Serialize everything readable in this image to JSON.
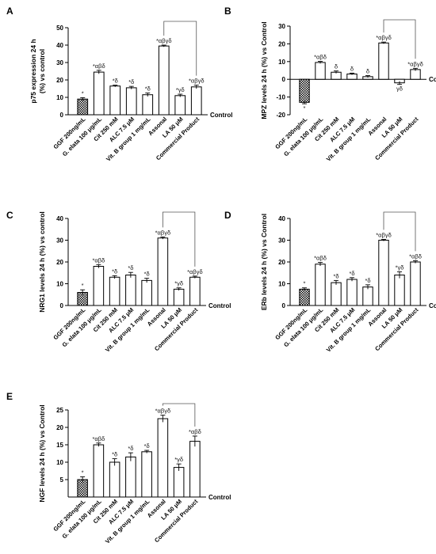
{
  "chart_data": [
    {
      "type": "bar",
      "panel_label": "A",
      "ylabel": "p75 expression 24 h\n(%) vs control",
      "control_label": "Control",
      "ylim": [
        0,
        50
      ],
      "yticks": [
        0,
        10,
        20,
        30,
        40,
        50
      ],
      "categories": [
        "GGF 200ng/mL",
        "G. elata 100 μg/mL",
        "Cit 250 mM",
        "ALC 7.5 μM",
        "Vit. B group 1 mg/mL",
        "Assonal",
        "LA 50 μM",
        "Commercial Product"
      ],
      "values": [
        9,
        24.5,
        16.5,
        15.5,
        11.5,
        39.5,
        11,
        16
      ],
      "errors": [
        0.8,
        1.0,
        0.5,
        0.8,
        1.0,
        0.5,
        0.8,
        1.0
      ],
      "annotations": [
        "*",
        "*αβδ",
        "*δ",
        "*δ",
        "*δ",
        "*αβγδ",
        "*γδ",
        "*αβγδ"
      ],
      "bracket": [
        5,
        7
      ]
    },
    {
      "type": "bar",
      "panel_label": "B",
      "ylabel": "MPZ levels 24 h (%) vs Control",
      "control_label": "Control",
      "ylim": [
        -20,
        30
      ],
      "yticks": [
        -20,
        -10,
        0,
        10,
        20,
        30
      ],
      "categories": [
        "GGF 200ng/mL",
        "G. elata 100 μg/mL",
        "Cit 250 mM",
        "ALC 7.5 μM",
        "Vit. B group 1 mg/mL",
        "Assonal",
        "LA 50 μM",
        "Commercial Product"
      ],
      "values": [
        -13,
        9.5,
        4,
        3,
        1.5,
        20.5,
        -2,
        5.5
      ],
      "errors": [
        0.8,
        0.6,
        0.7,
        0.5,
        0.6,
        0.5,
        0.9,
        0.7
      ],
      "annotations": [
        "*",
        "*αβδ",
        "δ",
        "δ",
        "δ",
        "*αβγδ",
        "γδ",
        "*αβγδ"
      ],
      "bracket": [
        5,
        7
      ]
    },
    {
      "type": "bar",
      "panel_label": "C",
      "ylabel": "NRG1 levels 24 h (%) vs control",
      "control_label": "Control",
      "ylim": [
        0,
        40
      ],
      "yticks": [
        0,
        10,
        20,
        30,
        40
      ],
      "categories": [
        "GGF 200ng/mL",
        "G. elata 100 μg/mL",
        "Cit 250 mM",
        "ALC 7.5 μM",
        "Vit. B group 1 mg/mL",
        "Assonal",
        "LA 50 μM",
        "Commercial Product"
      ],
      "values": [
        6,
        18,
        13,
        14,
        11.5,
        31,
        7.5,
        13
      ],
      "errors": [
        1.2,
        0.8,
        0.7,
        1.2,
        1.0,
        0.5,
        0.6,
        0.5
      ],
      "annotations": [
        "*",
        "*αβδ",
        "*δ",
        "*δ",
        "*δ",
        "*αβγδ",
        "*γδ",
        "*αβγδ"
      ],
      "bracket": [
        5,
        7
      ]
    },
    {
      "type": "bar",
      "panel_label": "D",
      "ylabel": "ERb levels 24 h (%) vs Control",
      "control_label": "Control",
      "ylim": [
        0,
        40
      ],
      "yticks": [
        0,
        10,
        20,
        30,
        40
      ],
      "categories": [
        "GGF 200ng/mL",
        "G. elata 100 μg/mL",
        "Cit 250 mM",
        "ALC 7.5 μM",
        "Vit. B group 1 mg/mL",
        "Assonal",
        "LA 50 μM",
        "Commercial Product"
      ],
      "values": [
        7.5,
        19,
        10.5,
        12,
        8.5,
        30,
        14,
        20
      ],
      "errors": [
        0.6,
        0.8,
        1.0,
        0.8,
        1.0,
        0.4,
        1.5,
        0.6
      ],
      "annotations": [
        "*",
        "*αβδ",
        "*δ",
        "*δ",
        "*δ",
        "*αβγδ",
        "*γδ",
        "*αβδ"
      ],
      "bracket": [
        5,
        7
      ]
    },
    {
      "type": "bar",
      "panel_label": "E",
      "ylabel": "NGF levels 24 h (%) vs Control",
      "control_label": "Control",
      "ylim": [
        0,
        25
      ],
      "yticks": [
        5,
        10,
        15,
        20,
        25
      ],
      "categories": [
        "GGF 200ng/mL",
        "G. elata 100 μg/mL",
        "Cit 250 mM",
        "ALC 7.5 μM",
        "Vit. B group 1 mg/mL",
        "Assonal",
        "LA 50 μM",
        "Commercial Product"
      ],
      "values": [
        5,
        15,
        10,
        11.5,
        13,
        22.5,
        8.5,
        16
      ],
      "errors": [
        0.8,
        0.5,
        1.0,
        1.2,
        0.4,
        1.0,
        1.0,
        1.5
      ],
      "annotations": [
        "*",
        "*αβδ",
        "*δ",
        "*δ",
        "*δ",
        "*αβγδ",
        "*γδ",
        "*αβδ"
      ],
      "bracket": [
        5,
        7
      ]
    }
  ]
}
